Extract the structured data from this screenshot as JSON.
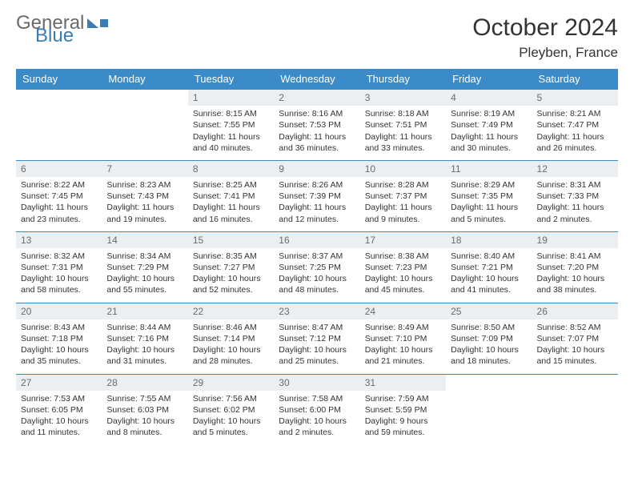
{
  "brand": {
    "part1": "General",
    "part2": "Blue"
  },
  "title": "October 2024",
  "location": "Pleyben, France",
  "colors": {
    "header_bg": "#3b8bc9",
    "header_text": "#ffffff",
    "daynum_bg": "#eceff1",
    "daynum_text": "#6b6b6b",
    "border": "#3b8bc9",
    "brand_gray": "#6a6a6a",
    "brand_blue": "#3a7db5"
  },
  "day_headers": [
    "Sunday",
    "Monday",
    "Tuesday",
    "Wednesday",
    "Thursday",
    "Friday",
    "Saturday"
  ],
  "weeks": [
    [
      {
        "n": "",
        "sr": "",
        "ss": "",
        "dl": ""
      },
      {
        "n": "",
        "sr": "",
        "ss": "",
        "dl": ""
      },
      {
        "n": "1",
        "sr": "Sunrise: 8:15 AM",
        "ss": "Sunset: 7:55 PM",
        "dl": "Daylight: 11 hours and 40 minutes."
      },
      {
        "n": "2",
        "sr": "Sunrise: 8:16 AM",
        "ss": "Sunset: 7:53 PM",
        "dl": "Daylight: 11 hours and 36 minutes."
      },
      {
        "n": "3",
        "sr": "Sunrise: 8:18 AM",
        "ss": "Sunset: 7:51 PM",
        "dl": "Daylight: 11 hours and 33 minutes."
      },
      {
        "n": "4",
        "sr": "Sunrise: 8:19 AM",
        "ss": "Sunset: 7:49 PM",
        "dl": "Daylight: 11 hours and 30 minutes."
      },
      {
        "n": "5",
        "sr": "Sunrise: 8:21 AM",
        "ss": "Sunset: 7:47 PM",
        "dl": "Daylight: 11 hours and 26 minutes."
      }
    ],
    [
      {
        "n": "6",
        "sr": "Sunrise: 8:22 AM",
        "ss": "Sunset: 7:45 PM",
        "dl": "Daylight: 11 hours and 23 minutes."
      },
      {
        "n": "7",
        "sr": "Sunrise: 8:23 AM",
        "ss": "Sunset: 7:43 PM",
        "dl": "Daylight: 11 hours and 19 minutes."
      },
      {
        "n": "8",
        "sr": "Sunrise: 8:25 AM",
        "ss": "Sunset: 7:41 PM",
        "dl": "Daylight: 11 hours and 16 minutes."
      },
      {
        "n": "9",
        "sr": "Sunrise: 8:26 AM",
        "ss": "Sunset: 7:39 PM",
        "dl": "Daylight: 11 hours and 12 minutes."
      },
      {
        "n": "10",
        "sr": "Sunrise: 8:28 AM",
        "ss": "Sunset: 7:37 PM",
        "dl": "Daylight: 11 hours and 9 minutes."
      },
      {
        "n": "11",
        "sr": "Sunrise: 8:29 AM",
        "ss": "Sunset: 7:35 PM",
        "dl": "Daylight: 11 hours and 5 minutes."
      },
      {
        "n": "12",
        "sr": "Sunrise: 8:31 AM",
        "ss": "Sunset: 7:33 PM",
        "dl": "Daylight: 11 hours and 2 minutes."
      }
    ],
    [
      {
        "n": "13",
        "sr": "Sunrise: 8:32 AM",
        "ss": "Sunset: 7:31 PM",
        "dl": "Daylight: 10 hours and 58 minutes."
      },
      {
        "n": "14",
        "sr": "Sunrise: 8:34 AM",
        "ss": "Sunset: 7:29 PM",
        "dl": "Daylight: 10 hours and 55 minutes."
      },
      {
        "n": "15",
        "sr": "Sunrise: 8:35 AM",
        "ss": "Sunset: 7:27 PM",
        "dl": "Daylight: 10 hours and 52 minutes."
      },
      {
        "n": "16",
        "sr": "Sunrise: 8:37 AM",
        "ss": "Sunset: 7:25 PM",
        "dl": "Daylight: 10 hours and 48 minutes."
      },
      {
        "n": "17",
        "sr": "Sunrise: 8:38 AM",
        "ss": "Sunset: 7:23 PM",
        "dl": "Daylight: 10 hours and 45 minutes."
      },
      {
        "n": "18",
        "sr": "Sunrise: 8:40 AM",
        "ss": "Sunset: 7:21 PM",
        "dl": "Daylight: 10 hours and 41 minutes."
      },
      {
        "n": "19",
        "sr": "Sunrise: 8:41 AM",
        "ss": "Sunset: 7:20 PM",
        "dl": "Daylight: 10 hours and 38 minutes."
      }
    ],
    [
      {
        "n": "20",
        "sr": "Sunrise: 8:43 AM",
        "ss": "Sunset: 7:18 PM",
        "dl": "Daylight: 10 hours and 35 minutes."
      },
      {
        "n": "21",
        "sr": "Sunrise: 8:44 AM",
        "ss": "Sunset: 7:16 PM",
        "dl": "Daylight: 10 hours and 31 minutes."
      },
      {
        "n": "22",
        "sr": "Sunrise: 8:46 AM",
        "ss": "Sunset: 7:14 PM",
        "dl": "Daylight: 10 hours and 28 minutes."
      },
      {
        "n": "23",
        "sr": "Sunrise: 8:47 AM",
        "ss": "Sunset: 7:12 PM",
        "dl": "Daylight: 10 hours and 25 minutes."
      },
      {
        "n": "24",
        "sr": "Sunrise: 8:49 AM",
        "ss": "Sunset: 7:10 PM",
        "dl": "Daylight: 10 hours and 21 minutes."
      },
      {
        "n": "25",
        "sr": "Sunrise: 8:50 AM",
        "ss": "Sunset: 7:09 PM",
        "dl": "Daylight: 10 hours and 18 minutes."
      },
      {
        "n": "26",
        "sr": "Sunrise: 8:52 AM",
        "ss": "Sunset: 7:07 PM",
        "dl": "Daylight: 10 hours and 15 minutes."
      }
    ],
    [
      {
        "n": "27",
        "sr": "Sunrise: 7:53 AM",
        "ss": "Sunset: 6:05 PM",
        "dl": "Daylight: 10 hours and 11 minutes."
      },
      {
        "n": "28",
        "sr": "Sunrise: 7:55 AM",
        "ss": "Sunset: 6:03 PM",
        "dl": "Daylight: 10 hours and 8 minutes."
      },
      {
        "n": "29",
        "sr": "Sunrise: 7:56 AM",
        "ss": "Sunset: 6:02 PM",
        "dl": "Daylight: 10 hours and 5 minutes."
      },
      {
        "n": "30",
        "sr": "Sunrise: 7:58 AM",
        "ss": "Sunset: 6:00 PM",
        "dl": "Daylight: 10 hours and 2 minutes."
      },
      {
        "n": "31",
        "sr": "Sunrise: 7:59 AM",
        "ss": "Sunset: 5:59 PM",
        "dl": "Daylight: 9 hours and 59 minutes."
      },
      {
        "n": "",
        "sr": "",
        "ss": "",
        "dl": ""
      },
      {
        "n": "",
        "sr": "",
        "ss": "",
        "dl": ""
      }
    ]
  ]
}
